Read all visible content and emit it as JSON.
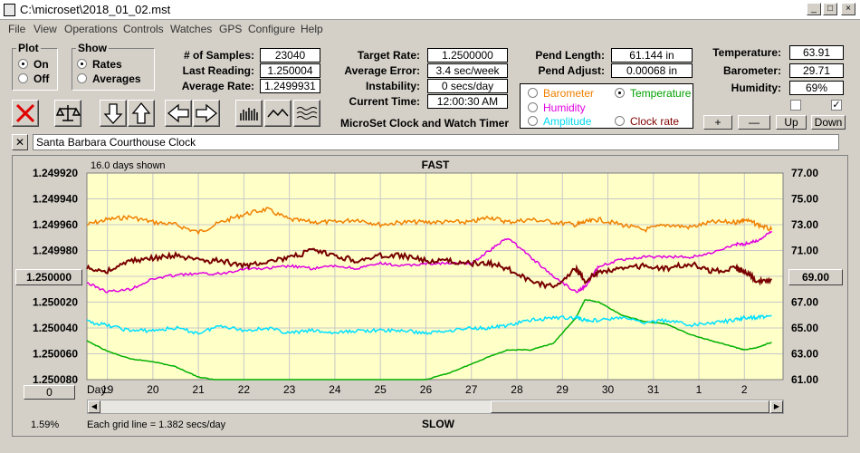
{
  "window": {
    "title": "C:\\microset\\2018_01_02.mst"
  },
  "menu": [
    "File",
    "View",
    "Operations",
    "Controls",
    "Watches",
    "GPS",
    "Configure",
    "Help"
  ],
  "plot_group": {
    "title": "Plot",
    "on": "On",
    "off": "Off",
    "selected": "On"
  },
  "show_group": {
    "title": "Show",
    "rates": "Rates",
    "averages": "Averages",
    "selected": "Rates"
  },
  "stats": {
    "samples_label": "# of Samples:",
    "samples": "23040",
    "last_label": "Last Reading:",
    "last": "1.250004",
    "avg_rate_label": "Average Rate:",
    "avg_rate": "1.2499931",
    "target_label": "Target Rate:",
    "target": "1.2500000",
    "avg_err_label": "Average Error:",
    "avg_err": "3.4 sec/week",
    "instab_label": "Instability:",
    "instab": "0 secs/day",
    "time_label": "Current Time:",
    "time": "12:00:30 AM",
    "pend_len_label": "Pend Length:",
    "pend_len": "61.144 in",
    "pend_adj_label": "Pend Adjust:",
    "pend_adj": "0.00068 in",
    "temp_label": "Temperature:",
    "temp": "63.91",
    "baro_label": "Barometer:",
    "baro": "29.71",
    "hum_label": "Humidity:",
    "hum": "69%"
  },
  "app_caption": "MicroSet Clock and Watch Timer",
  "sensor_select": {
    "options": [
      {
        "label": "Barometer",
        "color": "#f08000",
        "selected": false
      },
      {
        "label": "Temperature",
        "color": "#00a000",
        "selected": true
      },
      {
        "label": "Humidity",
        "color": "#e000e0",
        "selected": false
      },
      {
        "label": "Amplitude",
        "color": "#00d8f0",
        "selected": false
      },
      {
        "label": "Clock rate",
        "color": "#800000",
        "selected": false
      }
    ]
  },
  "adjust_buttons": {
    "plus": "+",
    "minus": "—",
    "up": "Up",
    "down": "Down"
  },
  "checkboxes": [
    false,
    true
  ],
  "clock_name": "Santa Barbara Courthouse Clock",
  "graph": {
    "days_shown": "16.0 days shown",
    "fast_label": "FAST",
    "slow_label": "SLOW",
    "grid_note": "Each grid line = 1.382 secs/day",
    "percent": "1.59%",
    "day_label": "Day:",
    "days": [
      "19",
      "20",
      "21",
      "22",
      "23",
      "24",
      "25",
      "26",
      "27",
      "28",
      "29",
      "30",
      "31",
      "1",
      "2"
    ],
    "left_ticks": [
      "1.249920",
      "1.249940",
      "1.249960",
      "1.249980",
      "1.250000",
      "1.250020",
      "1.250040",
      "1.250060",
      "1.250080"
    ],
    "right_ticks": [
      "77.00",
      "75.00",
      "73.00",
      "71.00",
      "69.00",
      "67.00",
      "65.00",
      "63.00",
      "61.00"
    ],
    "center_left_button": "1.250000",
    "center_right_button": "69.00",
    "zero_button": "0",
    "bg": "#ffffc8",
    "colors": {
      "barometer": "#f08000",
      "temperature": "#00b000",
      "humidity": "#e000e0",
      "amplitude": "#00e0ff",
      "rate": "#780000"
    }
  },
  "chart_data": {
    "type": "line",
    "xlabel": "Day:",
    "x": [
      18.55,
      19.0,
      19.5,
      20.0,
      20.5,
      21.0,
      21.5,
      22.0,
      22.5,
      23.0,
      23.5,
      24.0,
      24.5,
      25.0,
      25.5,
      26.0,
      26.5,
      27.0,
      27.4,
      27.8,
      28.3,
      28.8,
      29.3,
      29.5,
      29.8,
      30.3,
      30.8,
      31.3,
      31.8,
      32.3,
      32.8,
      33.0,
      33.3,
      33.6
    ],
    "left_axis": {
      "ticks": [
        "1.249920",
        "1.249940",
        "1.249960",
        "1.249980",
        "1.250000",
        "1.250020",
        "1.250040",
        "1.250060",
        "1.250080"
      ],
      "range": [
        1.24992,
        1.25008
      ]
    },
    "right_axis": {
      "ticks": [
        "77.00",
        "75.00",
        "73.00",
        "71.00",
        "69.00",
        "67.00",
        "65.00",
        "63.00",
        "61.00"
      ],
      "range": [
        77,
        61
      ]
    },
    "series": [
      {
        "axis": "left",
        "color": "#f08000",
        "values": [
          1.24996,
          1.249956,
          1.249954,
          1.249958,
          1.24996,
          1.249966,
          1.249958,
          1.249952,
          1.249948,
          1.249956,
          1.249958,
          1.249958,
          1.249956,
          1.24996,
          1.249958,
          1.249958,
          1.249958,
          1.249958,
          1.249954,
          1.249958,
          1.249956,
          1.249958,
          1.24996,
          1.249958,
          1.249956,
          1.24996,
          1.249964,
          1.24996,
          1.249962,
          1.249958,
          1.249958,
          1.249956,
          1.24996,
          1.249964
        ]
      },
      {
        "axis": "right",
        "color": "#00b000",
        "values": [
          64.0,
          63.2,
          62.6,
          62.4,
          62.0,
          61.2,
          60.9,
          60.8,
          60.8,
          60.8,
          60.8,
          60.8,
          60.8,
          60.8,
          60.8,
          61.0,
          61.5,
          62.2,
          62.8,
          63.3,
          63.3,
          63.8,
          65.8,
          67.2,
          67.0,
          66.0,
          65.5,
          65.3,
          64.5,
          64.0,
          63.5,
          63.3,
          63.5,
          63.9
        ]
      },
      {
        "axis": "right",
        "color": "#e000e0",
        "values": [
          68.5,
          67.8,
          68.0,
          68.8,
          69.1,
          69.2,
          69.2,
          69.6,
          69.6,
          69.8,
          69.6,
          69.8,
          69.6,
          70.0,
          69.8,
          70.0,
          70.0,
          70.0,
          71.0,
          72.0,
          70.5,
          69.0,
          67.8,
          68.2,
          69.8,
          70.3,
          70.5,
          70.5,
          70.5,
          70.8,
          71.5,
          71.5,
          71.8,
          72.5
        ]
      },
      {
        "axis": "right",
        "color": "#00e0ff",
        "values": [
          65.5,
          65.2,
          64.8,
          64.8,
          65.0,
          64.6,
          65.2,
          64.8,
          65.0,
          64.6,
          64.8,
          64.6,
          64.8,
          64.8,
          64.8,
          64.6,
          64.8,
          65.0,
          65.0,
          65.2,
          65.6,
          65.8,
          65.8,
          65.6,
          65.6,
          65.8,
          65.4,
          65.6,
          65.2,
          65.4,
          65.6,
          65.8,
          65.8,
          66.0
        ]
      },
      {
        "axis": "left",
        "color": "#780000",
        "values": [
          1.249994,
          1.249996,
          1.249988,
          1.249986,
          1.249984,
          1.249988,
          1.249988,
          1.249992,
          1.249988,
          1.249986,
          1.24998,
          1.249984,
          1.249988,
          1.249984,
          1.249984,
          1.249988,
          1.249988,
          1.24999,
          1.24999,
          1.249994,
          1.250004,
          1.250008,
          1.249994,
          1.250004,
          1.249996,
          1.249994,
          1.249992,
          1.249994,
          1.24999,
          1.249996,
          1.249994,
          1.249996,
          1.250004,
          1.250002
        ]
      }
    ]
  }
}
